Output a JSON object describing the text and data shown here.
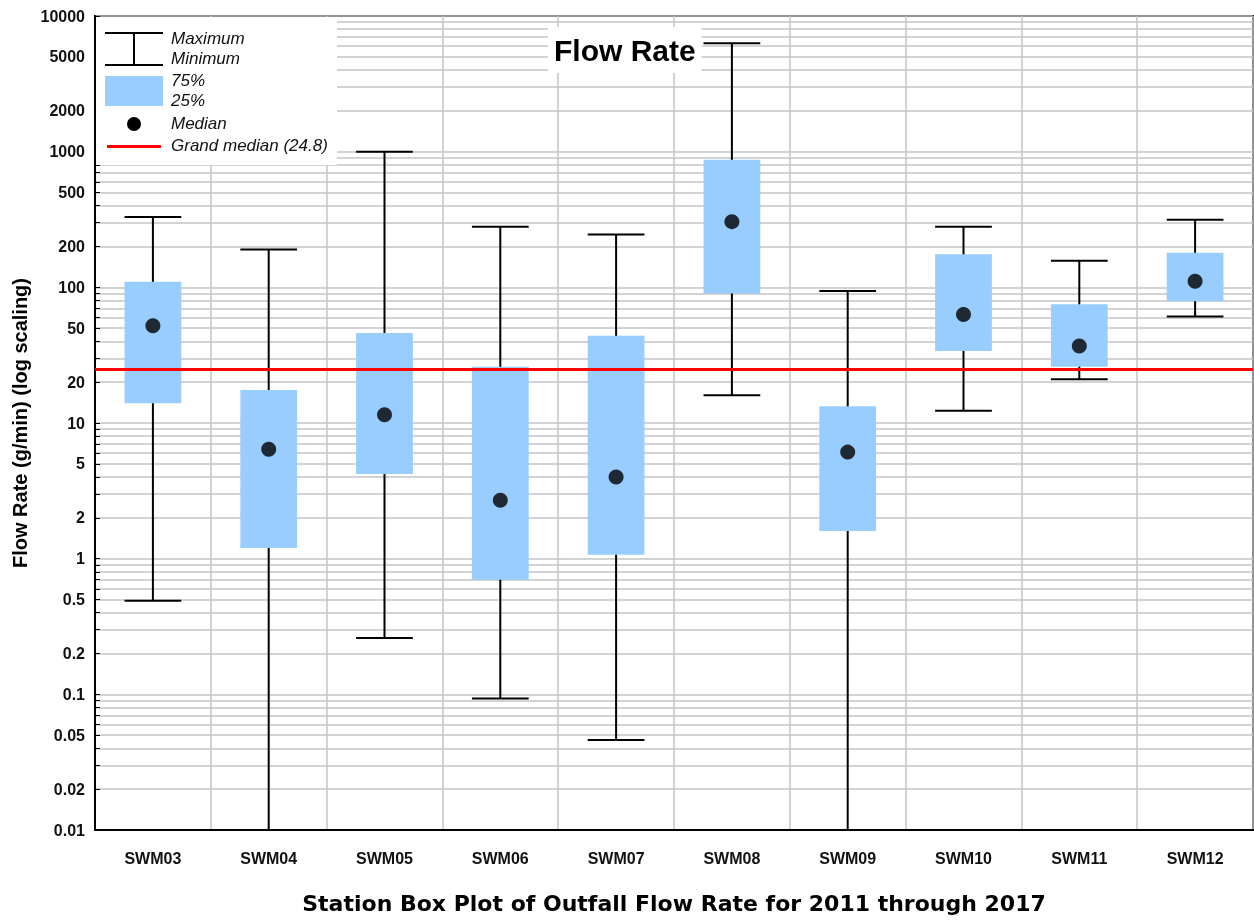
{
  "chart_data": {
    "type": "box",
    "title": "Flow Rate",
    "xlabel": "Station Box Plot of Outfall Flow Rate for 2011 through 2017",
    "ylabel": "Flow Rate (g/min) (log scaling)",
    "categories": [
      "SWM03",
      "SWM04",
      "SWM05",
      "SWM06",
      "SWM07",
      "SWM08",
      "SWM09",
      "SWM10",
      "SWM11",
      "SWM12"
    ],
    "boxes": [
      {
        "low": 0.49,
        "q1": 14,
        "median": 52,
        "q3": 110,
        "high": 330
      },
      {
        "low": 0.01,
        "q1": 1.2,
        "median": 6.4,
        "q3": 17.5,
        "high": 190
      },
      {
        "low": 0.26,
        "q1": 4.2,
        "median": 11.5,
        "q3": 46,
        "high": 1000
      },
      {
        "low": 0.093,
        "q1": 0.7,
        "median": 2.7,
        "q3": 26,
        "high": 280
      },
      {
        "low": 0.046,
        "q1": 1.07,
        "median": 4,
        "q3": 44,
        "high": 245
      },
      {
        "low": 16,
        "q1": 90,
        "median": 305,
        "q3": 870,
        "high": 6300
      },
      {
        "low": 0.01,
        "q1": 1.6,
        "median": 6.1,
        "q3": 13.3,
        "high": 94
      },
      {
        "low": 12.3,
        "q1": 34,
        "median": 63,
        "q3": 175,
        "high": 280
      },
      {
        "low": 21,
        "q1": 26,
        "median": 37,
        "q3": 75,
        "high": 157
      },
      {
        "low": 61,
        "q1": 79,
        "median": 111,
        "q3": 180,
        "high": 315
      }
    ],
    "color": "#99ccff",
    "marker": "circle",
    "log": true,
    "grid": true,
    "legend": "top left",
    "ylim": [
      0.01,
      10000
    ],
    "yticks": [
      0.01,
      0.02,
      {
        "value": 0.03,
        "label": null
      },
      {
        "value": 0.04,
        "label": null
      },
      0.05,
      {
        "value": 0.06,
        "label": null
      },
      {
        "value": 0.07,
        "label": null
      },
      {
        "value": 0.08,
        "label": null
      },
      {
        "value": 0.09,
        "label": null
      },
      0.1,
      0.2,
      {
        "value": 0.3,
        "label": null
      },
      {
        "value": 0.4,
        "label": null
      },
      0.5,
      {
        "value": 0.6,
        "label": null
      },
      {
        "value": 0.7,
        "label": null
      },
      {
        "value": 0.8,
        "label": null
      },
      {
        "value": 0.9,
        "label": null
      },
      1,
      2,
      {
        "value": 3,
        "label": null
      },
      {
        "value": 4,
        "label": null
      },
      5,
      {
        "value": 6,
        "label": null
      },
      {
        "value": 7,
        "label": null
      },
      {
        "value": 8,
        "label": null
      },
      {
        "value": 9,
        "label": null
      },
      10,
      20,
      {
        "value": 30,
        "label": null
      },
      {
        "value": 40,
        "label": null
      },
      50,
      {
        "value": 60,
        "label": null
      },
      {
        "value": 70,
        "label": null
      },
      {
        "value": 80,
        "label": null
      },
      {
        "value": 90,
        "label": null
      },
      100,
      200,
      {
        "value": 300,
        "label": null
      },
      {
        "value": 400,
        "label": null
      },
      500,
      {
        "value": 600,
        "label": null
      },
      {
        "value": 700,
        "label": null
      },
      {
        "value": 800,
        "label": null
      },
      {
        "value": 900,
        "label": null
      },
      1000,
      2000,
      {
        "value": 3000,
        "label": null
      },
      {
        "value": 4000,
        "label": null
      },
      5000,
      {
        "value": 6000,
        "label": null
      },
      {
        "value": 7000,
        "label": null
      },
      {
        "value": 8000,
        "label": null
      },
      {
        "value": 9000,
        "label": null
      },
      10000
    ],
    "annotations": [
      "Maximum",
      "Minimum",
      "75%",
      "25%",
      "Median"
    ],
    "ref_lines": [
      {
        "axis": "y",
        "value": 24.8,
        "label": "Grand median (24.8)",
        "color": "#ff0000"
      }
    ]
  }
}
